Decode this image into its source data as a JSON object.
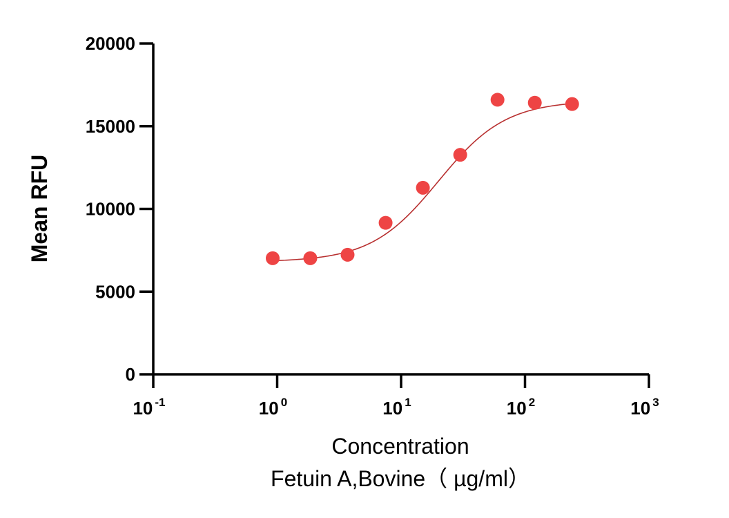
{
  "chart_data": {
    "type": "scatter",
    "title": "",
    "ylabel": "Mean RFU",
    "xlabel_lines": [
      "Concentration",
      "Fetuin A,Bovine（ µg/ml）"
    ],
    "x_scale": "log10",
    "xlim": [
      0.1,
      1000
    ],
    "ylim": [
      0,
      20000
    ],
    "x_ticks": [
      {
        "value": 0.1,
        "base": "10",
        "exp": "-1"
      },
      {
        "value": 1,
        "base": "10",
        "exp": "0"
      },
      {
        "value": 10,
        "base": "10",
        "exp": "1"
      },
      {
        "value": 100,
        "base": "10",
        "exp": "2"
      },
      {
        "value": 1000,
        "base": "10",
        "exp": "3"
      }
    ],
    "y_ticks": [
      {
        "value": 0,
        "label": "0"
      },
      {
        "value": 5000,
        "label": "5000"
      },
      {
        "value": 10000,
        "label": "10000"
      },
      {
        "value": 15000,
        "label": "15000"
      },
      {
        "value": 20000,
        "label": "20000"
      }
    ],
    "series": [
      {
        "points": [
          {
            "x": 0.92,
            "y": 7020
          },
          {
            "x": 1.85,
            "y": 7020
          },
          {
            "x": 3.7,
            "y": 7230
          },
          {
            "x": 7.5,
            "y": 9160
          },
          {
            "x": 15,
            "y": 11280
          },
          {
            "x": 30,
            "y": 13270
          },
          {
            "x": 60,
            "y": 16600
          },
          {
            "x": 120,
            "y": 16420
          },
          {
            "x": 240,
            "y": 16340
          }
        ],
        "marker_color": "#ee4444",
        "curve": {
          "model": "four-parameter logistic",
          "bottom": 6800,
          "top": 16550,
          "ec50": 20,
          "hill": 1.6,
          "x_range": [
            0.92,
            240
          ],
          "color": "#b83030"
        }
      }
    ],
    "grid": false,
    "legend": "none"
  }
}
